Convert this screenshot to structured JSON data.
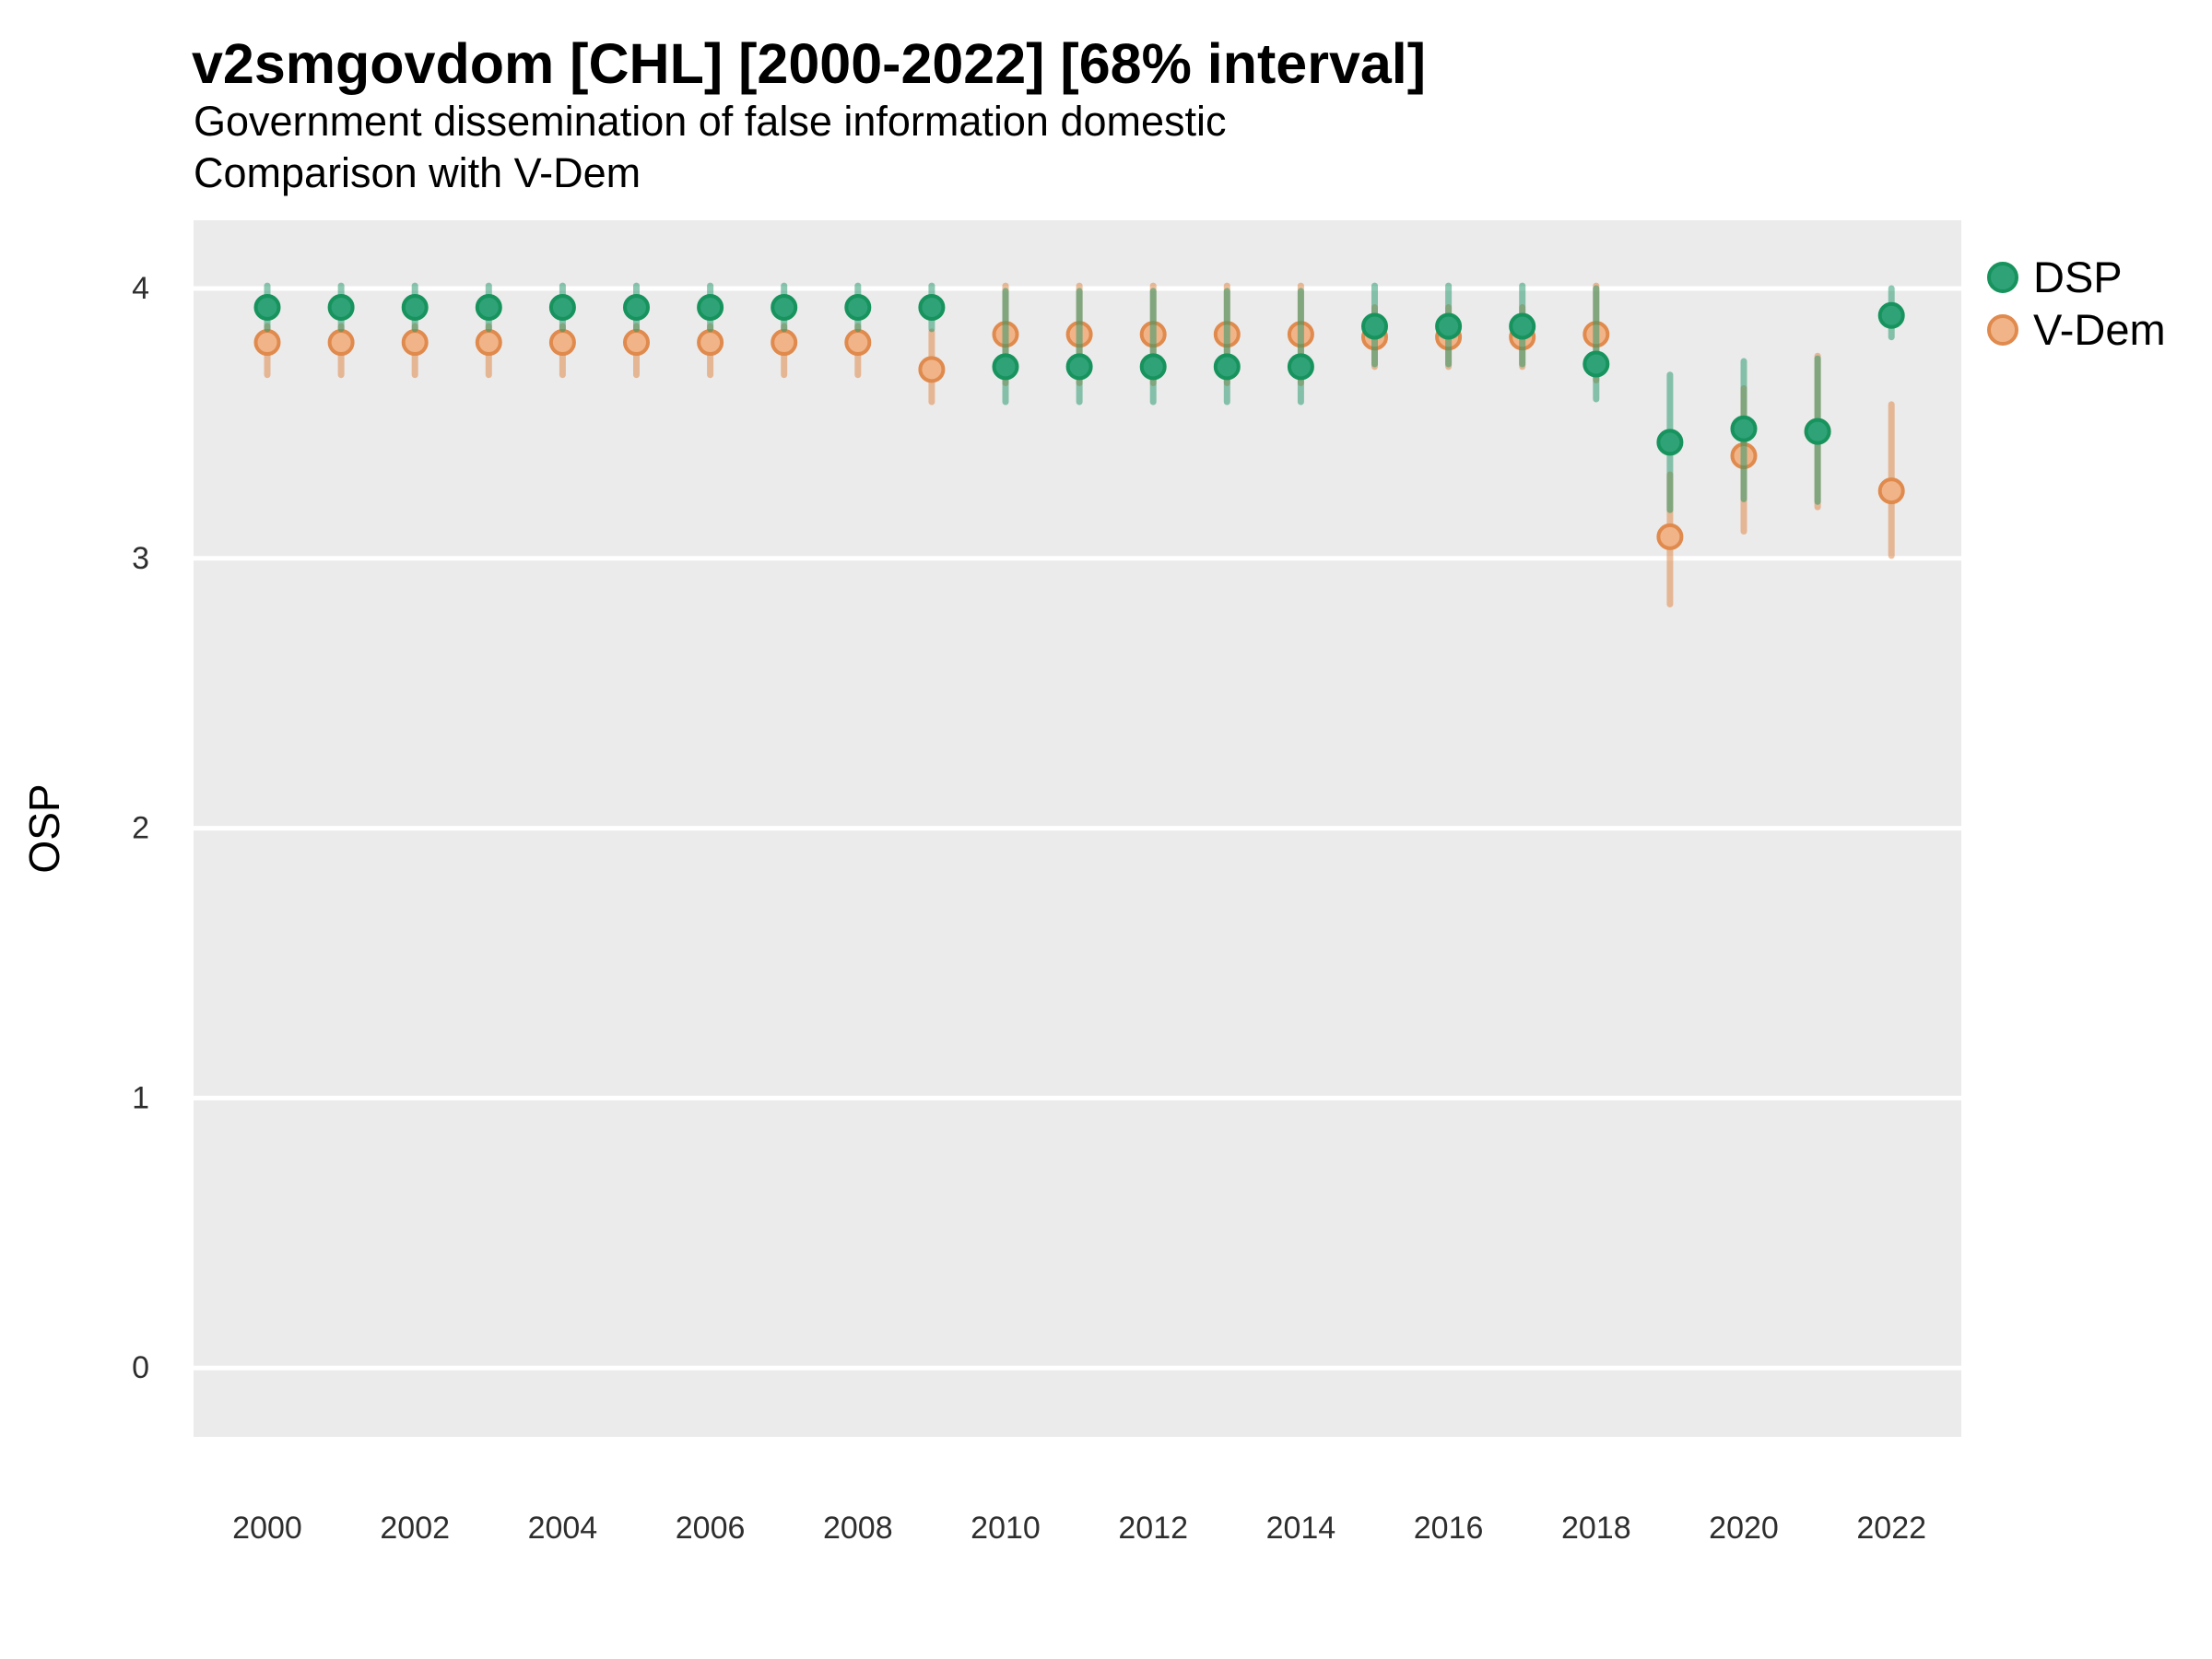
{
  "header": {
    "title": "v2smgovdom [CHL] [2000-2022] [68% interval]",
    "subtitle_line1": "Government dissemination of false information domestic",
    "subtitle_line2": "Comparison with V-Dem"
  },
  "chart_data": {
    "type": "pointrange",
    "title": "v2smgovdom [CHL] [2000-2022] [68% interval]",
    "subtitle": "Government dissemination of false information domestic — Comparison with V-Dem",
    "interval": "68%",
    "ylabel": "OSP",
    "xlabel": "",
    "ylim": [
      -0.26,
      4.25
    ],
    "yticks": [
      4,
      3,
      2,
      1,
      0
    ],
    "xticks": [
      2000,
      2002,
      2004,
      2006,
      2008,
      2010,
      2012,
      2014,
      2016,
      2018,
      2020,
      2022
    ],
    "grid": "horizontal-white-on-gray",
    "legend_position": "right",
    "panel_color": "#EBEBEB",
    "grid_color": "#FFFFFF",
    "x": [
      2000,
      2001,
      2002,
      2003,
      2004,
      2005,
      2006,
      2007,
      2008,
      2009,
      2010,
      2011,
      2012,
      2013,
      2014,
      2015,
      2016,
      2017,
      2018,
      2019,
      2020,
      2021,
      2022
    ],
    "series": [
      {
        "name": "V-Dem",
        "point_fill": "#F0B488",
        "point_stroke": "#E08A4D",
        "bar_color": "rgba(224,138,77,0.55)",
        "values": [
          3.8,
          3.8,
          3.8,
          3.8,
          3.8,
          3.8,
          3.8,
          3.8,
          3.8,
          3.7,
          3.83,
          3.83,
          3.83,
          3.83,
          3.83,
          3.82,
          3.82,
          3.82,
          3.83,
          3.08,
          3.38,
          3.47,
          3.25
        ],
        "lo": [
          3.68,
          3.68,
          3.68,
          3.68,
          3.68,
          3.68,
          3.68,
          3.68,
          3.68,
          3.58,
          3.65,
          3.65,
          3.65,
          3.65,
          3.65,
          3.71,
          3.71,
          3.71,
          3.66,
          2.83,
          3.1,
          3.19,
          3.01
        ],
        "hi": [
          3.86,
          3.86,
          3.86,
          3.86,
          3.86,
          3.86,
          3.86,
          3.86,
          3.86,
          3.84,
          4.01,
          4.01,
          4.01,
          4.01,
          4.01,
          3.93,
          3.93,
          3.93,
          4.01,
          3.31,
          3.63,
          3.75,
          3.57
        ]
      },
      {
        "name": "DSP",
        "point_fill": "#2FA277",
        "point_stroke": "#17935D",
        "bar_color": "rgba(29,149,104,0.5)",
        "values": [
          3.93,
          3.93,
          3.93,
          3.93,
          3.93,
          3.93,
          3.93,
          3.93,
          3.93,
          3.93,
          3.71,
          3.71,
          3.71,
          3.71,
          3.71,
          3.86,
          3.86,
          3.86,
          3.72,
          3.43,
          3.48,
          3.47,
          3.9
        ],
        "lo": [
          3.85,
          3.85,
          3.85,
          3.85,
          3.85,
          3.85,
          3.85,
          3.85,
          3.85,
          3.85,
          3.58,
          3.58,
          3.58,
          3.58,
          3.58,
          3.72,
          3.72,
          3.72,
          3.59,
          3.18,
          3.22,
          3.21,
          3.82
        ],
        "hi": [
          4.01,
          4.01,
          4.01,
          4.01,
          4.01,
          4.01,
          4.01,
          4.01,
          4.01,
          4.01,
          3.99,
          3.99,
          3.99,
          3.99,
          3.99,
          4.01,
          4.01,
          4.01,
          4.0,
          3.68,
          3.73,
          3.74,
          4.0
        ]
      }
    ],
    "legend_order": [
      "DSP",
      "V-Dem"
    ]
  }
}
